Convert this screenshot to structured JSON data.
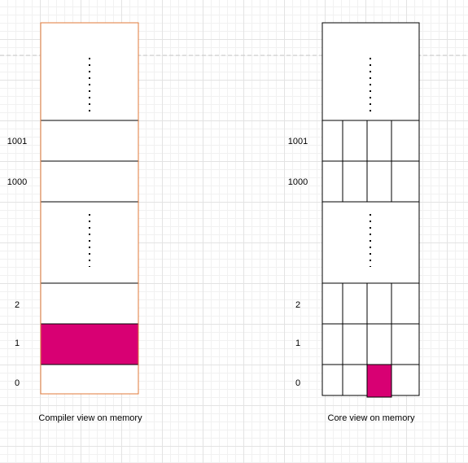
{
  "colors": {
    "highlight": "#d80073",
    "compiler_border": "#e07a3a",
    "line": "#000000",
    "dashed_guide": "#c8c8c8"
  },
  "compiler_view": {
    "caption": "Compiler view on memory",
    "row_labels": [
      "1001",
      "1000",
      "2",
      "1",
      "0"
    ],
    "highlighted_address": "1"
  },
  "core_view": {
    "caption": "Core view on memory",
    "row_labels": [
      "1001",
      "1000",
      "2",
      "1",
      "0"
    ],
    "highlighted_address": "0"
  }
}
